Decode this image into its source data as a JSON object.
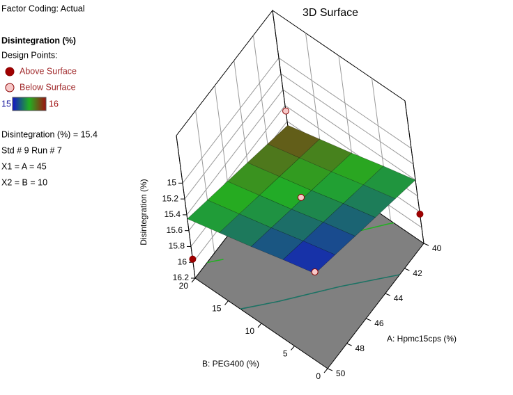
{
  "sidebar": {
    "factor_coding": "Factor Coding: Actual",
    "response": "Disintegration (%)",
    "design_points": "Design Points:",
    "legend": [
      {
        "name": "Above Surface",
        "color": "#a00000"
      },
      {
        "name": "Below Surface",
        "color": "#f6c8c8"
      }
    ],
    "info": [
      "Disintegration (%) = 15.4",
      "Std # 9 Run # 7",
      "X1 = A = 45",
      "X2 = B = 10"
    ]
  },
  "chart_data": {
    "type": "surface3d",
    "title": "3D Surface",
    "xlabel": "A: Hpmc15cps (%)",
    "ylabel": "B: PEG400 (%)",
    "zlabel": "Disintegration (%)",
    "xlim": [
      40,
      50
    ],
    "xticks": [
      40,
      42,
      44,
      46,
      48,
      50
    ],
    "ylim": [
      0,
      20
    ],
    "yticks": [
      0,
      5,
      10,
      15,
      20
    ],
    "zlim": [
      14.4,
      16.2
    ],
    "zticks": [
      15,
      15.2,
      15.4,
      15.6,
      15.8,
      16,
      16.2
    ],
    "z_reversed": true,
    "colorscale": {
      "min": 15,
      "max": 16,
      "colors": [
        "#1414c8",
        "#22b022",
        "#a01010"
      ]
    },
    "surface": {
      "A": [
        40,
        42,
        44,
        46,
        48,
        50
      ],
      "B": [
        0,
        5,
        10,
        15,
        20
      ],
      "z": [
        [
          15.4,
          15.32,
          15.24,
          15.16,
          15.08,
          15.0
        ],
        [
          15.51,
          15.43,
          15.35,
          15.27,
          15.19,
          15.11
        ],
        [
          15.63,
          15.55,
          15.47,
          15.39,
          15.31,
          15.23
        ],
        [
          15.74,
          15.66,
          15.58,
          15.5,
          15.42,
          15.34
        ],
        [
          15.85,
          15.77,
          15.69,
          15.61,
          15.53,
          15.45
        ]
      ]
    },
    "floor_contours": [
      15.3,
      15.5,
      15.7
    ],
    "design_points": {
      "A": [
        40,
        50,
        40,
        50,
        45
      ],
      "B": [
        0,
        20,
        20,
        0,
        10
      ],
      "values": [
        15.83,
        15.96,
        15.67,
        14.98,
        15.4
      ],
      "legend_index": [
        0,
        0,
        1,
        1,
        1
      ]
    }
  }
}
